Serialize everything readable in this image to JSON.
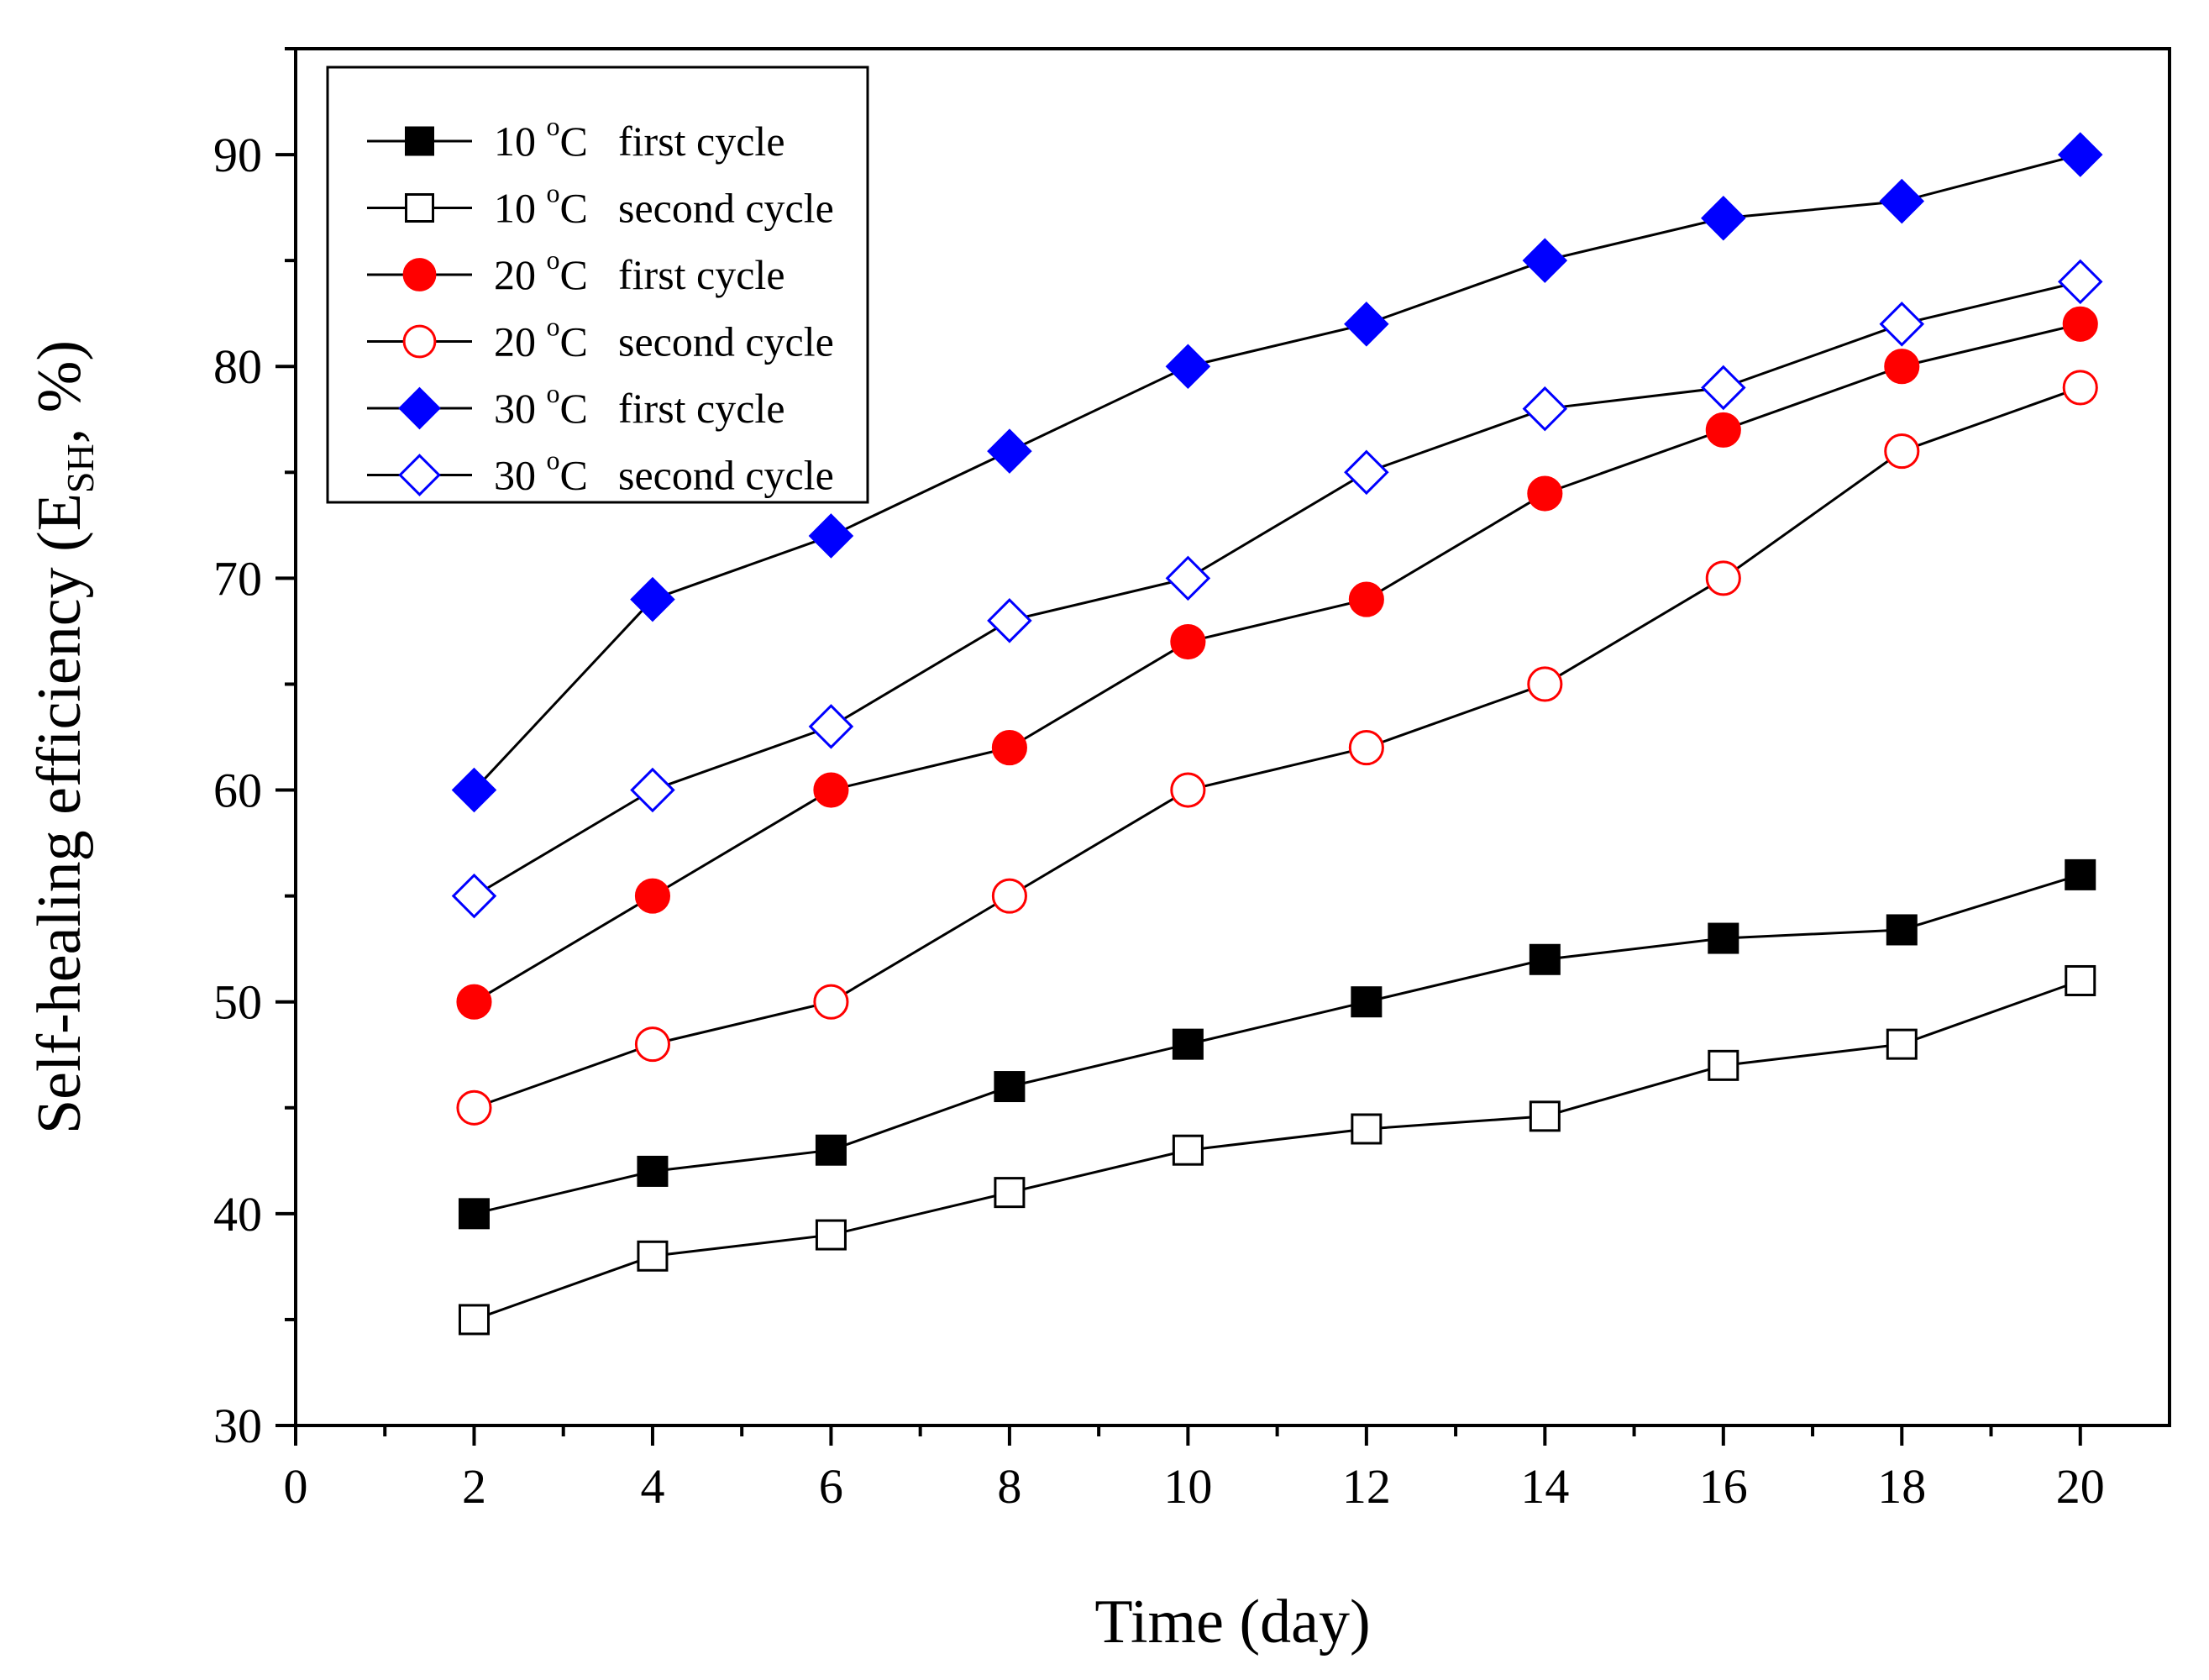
{
  "chart_data": {
    "type": "line",
    "title": "",
    "xlabel": "Time (day)",
    "ylabel": {
      "main": "Self-healing efficiency (E",
      "sub": "SH",
      "tail": ", %)"
    },
    "xlim": [
      0,
      21
    ],
    "ylim": [
      30,
      95
    ],
    "xticks": [
      0,
      2,
      4,
      6,
      8,
      10,
      12,
      14,
      16,
      18,
      20
    ],
    "yticks": [
      30,
      40,
      50,
      60,
      70,
      80,
      90
    ],
    "grid": false,
    "legend_position": "top-left",
    "x": [
      2,
      4,
      6,
      8,
      10,
      12,
      14,
      16,
      18,
      20
    ],
    "series": [
      {
        "legend": {
          "temp": "10 ",
          "deg": "o",
          "unit": "C",
          "cycle": "first cycle"
        },
        "marker": "square",
        "filled": true,
        "color": "#000000",
        "values": [
          40,
          42,
          43,
          46,
          48,
          50,
          52,
          53,
          53.4,
          56
        ]
      },
      {
        "legend": {
          "temp": "10 ",
          "deg": "o",
          "unit": "C",
          "cycle": "second cycle"
        },
        "marker": "square",
        "filled": false,
        "color": "#000000",
        "values": [
          35,
          38,
          39,
          41,
          43,
          44,
          44.6,
          47,
          48,
          51
        ]
      },
      {
        "legend": {
          "temp": "20 ",
          "deg": "o",
          "unit": "C",
          "cycle": "first cycle"
        },
        "marker": "circle",
        "filled": true,
        "color": "#ff0000",
        "values": [
          50,
          55,
          60,
          62,
          67,
          69,
          74,
          77,
          80,
          82
        ]
      },
      {
        "legend": {
          "temp": "20 ",
          "deg": "o",
          "unit": "C",
          "cycle": "second cycle"
        },
        "marker": "circle",
        "filled": false,
        "color": "#ff0000",
        "values": [
          45,
          48,
          50,
          55,
          60,
          62,
          65,
          70,
          76,
          79
        ]
      },
      {
        "legend": {
          "temp": "30 ",
          "deg": "o",
          "unit": "C",
          "cycle": "first cycle"
        },
        "marker": "diamond",
        "filled": true,
        "color": "#0000ff",
        "values": [
          60,
          69,
          72,
          76,
          80,
          82,
          85,
          87,
          87.8,
          90
        ]
      },
      {
        "legend": {
          "temp": "30 ",
          "deg": "o",
          "unit": "C",
          "cycle": "second cycle"
        },
        "marker": "diamond",
        "filled": false,
        "color": "#0000ff",
        "values": [
          55,
          60,
          63,
          68,
          70,
          75,
          78,
          79,
          82,
          84
        ]
      }
    ]
  }
}
